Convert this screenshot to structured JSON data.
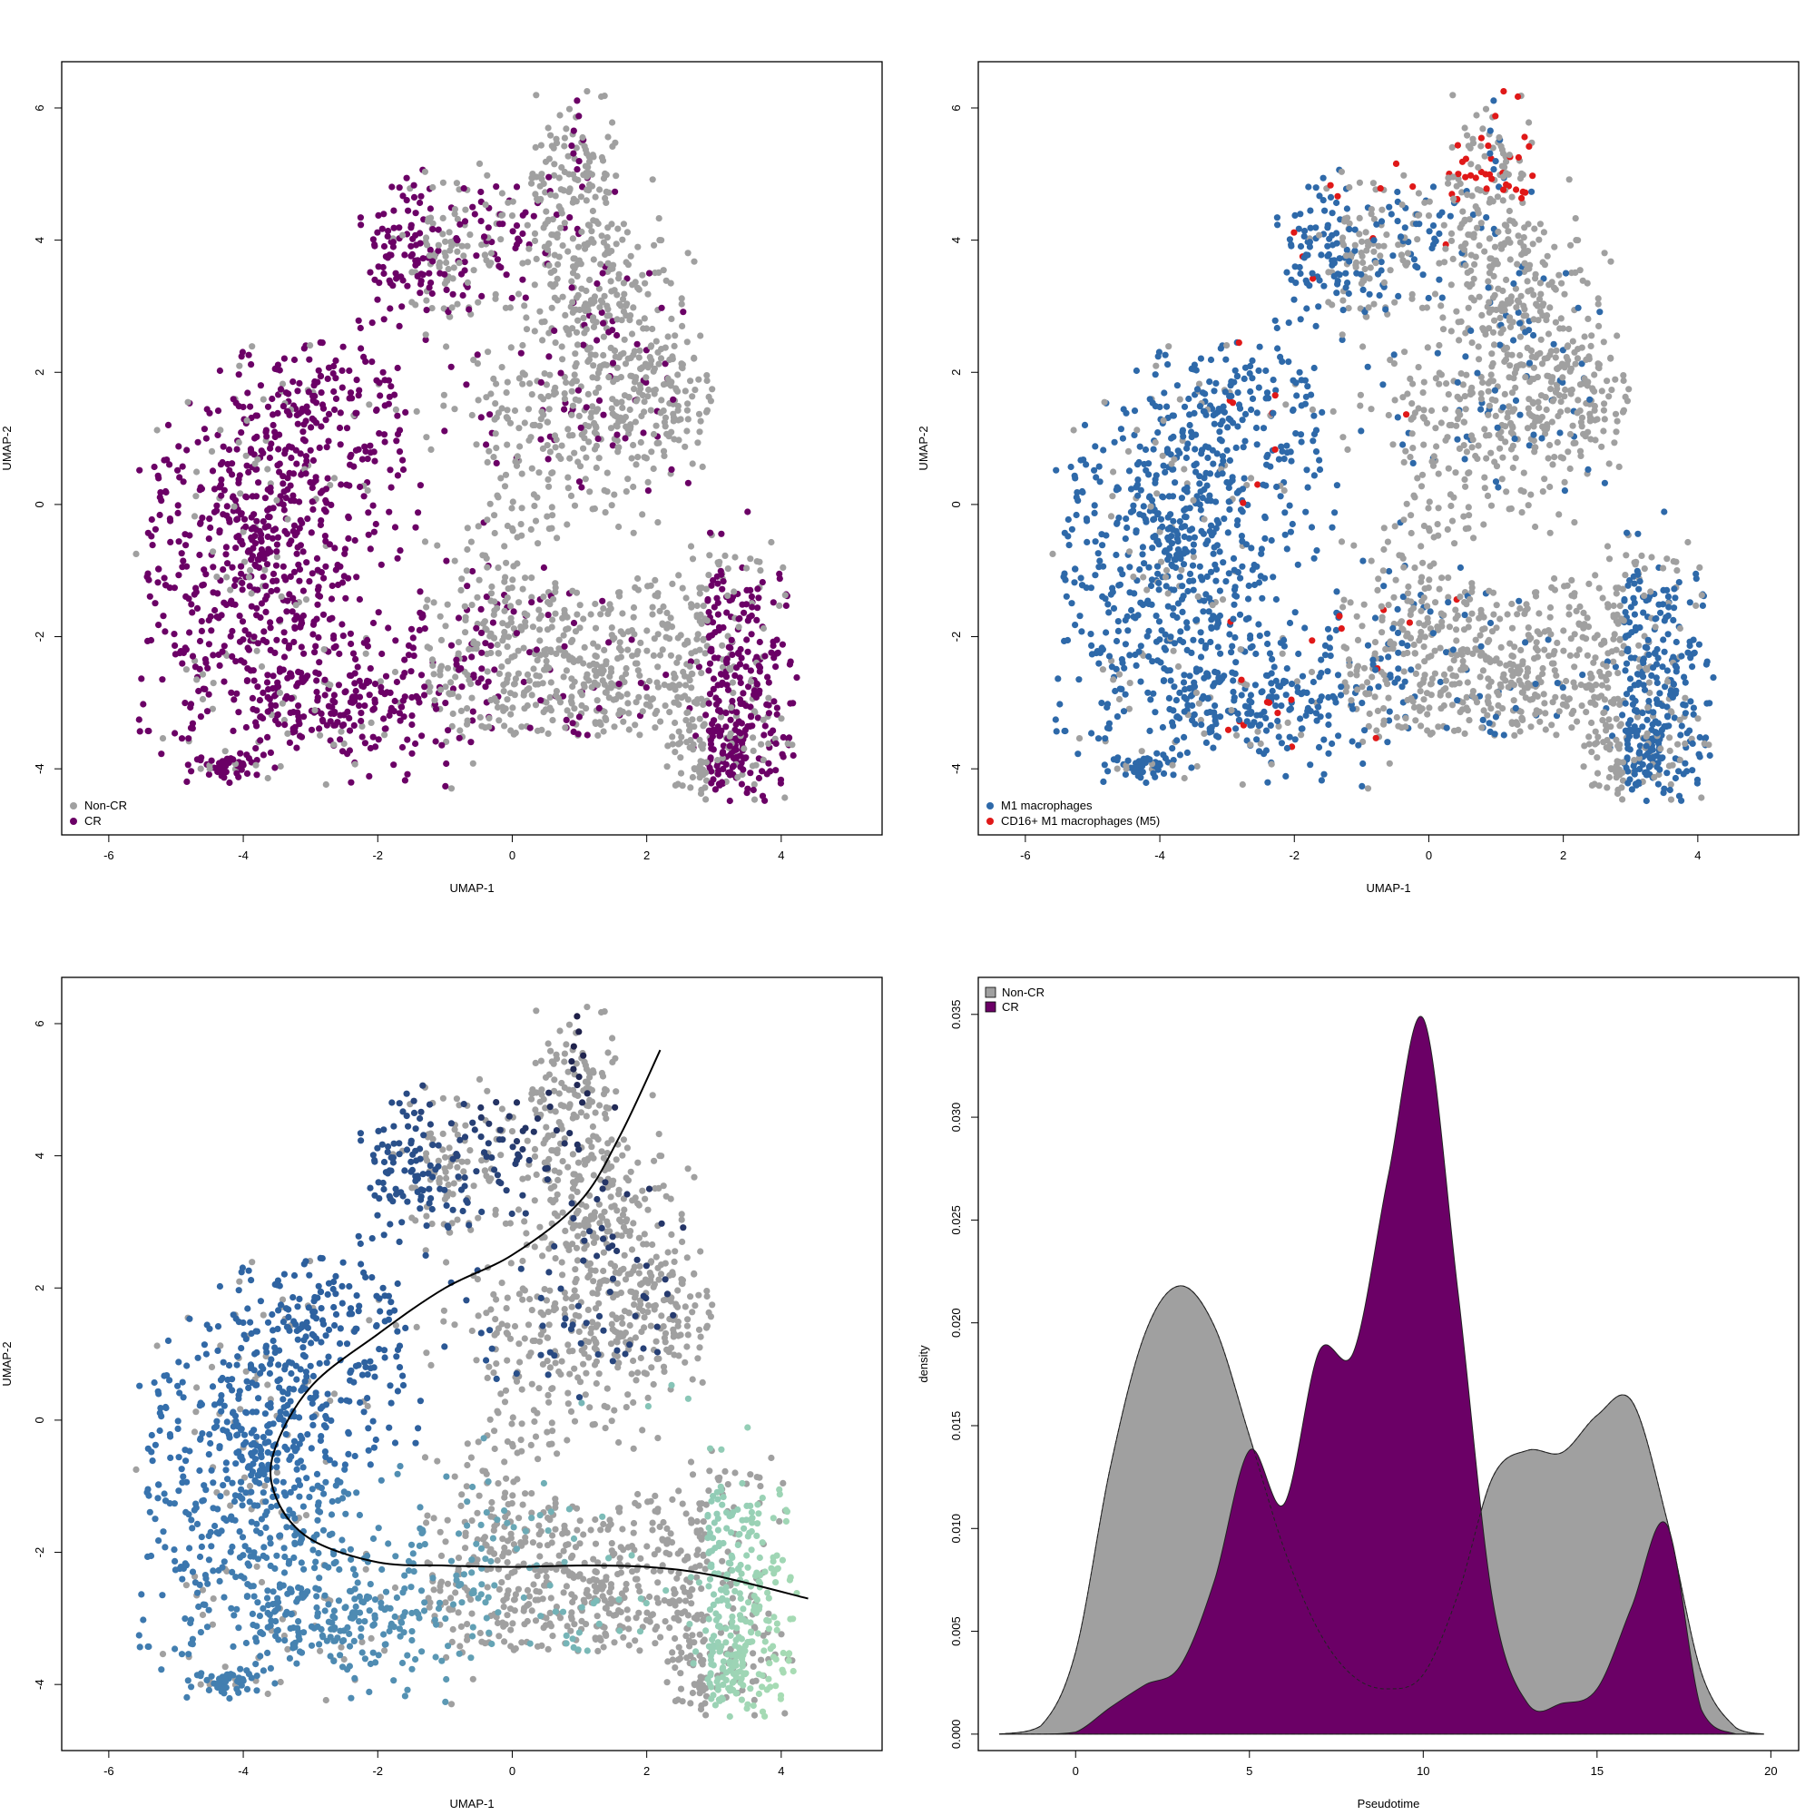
{
  "colors": {
    "grey": "#a0a0a0",
    "purple": "#6b0066",
    "blue": "#2e69a9",
    "red": "#e01818",
    "curve": "#000000",
    "pseudotime_palette": [
      "#a8dcb4",
      "#7fbfb8",
      "#5592b3",
      "#3570ad",
      "#2b5c9a",
      "#273e73",
      "#1e1e46"
    ]
  },
  "chart_data": [
    {
      "type": "scatter",
      "title": "",
      "xlabel": "UMAP-1",
      "ylabel": "UMAP-2",
      "xlim": [
        -6.7,
        5.5
      ],
      "ylim": [
        -5.0,
        6.7
      ],
      "xticks": [
        "-6",
        "-4",
        "-2",
        "0",
        "2",
        "4"
      ],
      "yticks": [
        "-4",
        "-2",
        "0",
        "2",
        "4",
        "6"
      ],
      "grid": false,
      "legend_position": "bottom-left",
      "legend": [
        {
          "label": "Non-CR",
          "color": "#a0a0a0"
        },
        {
          "label": "CR",
          "color": "#6b0066"
        }
      ],
      "series": [
        {
          "name": "Non-CR",
          "region": "right half of the embedding, x approx -1 to 4.2"
        },
        {
          "name": "CR",
          "region": "left half x approx -5.5 to -1, plus lower-right cluster near (3.5, -3)"
        }
      ]
    },
    {
      "type": "scatter",
      "title": "",
      "xlabel": "UMAP-1",
      "ylabel": "UMAP-2",
      "xlim": [
        -6.7,
        5.5
      ],
      "ylim": [
        -5.0,
        6.7
      ],
      "xticks": [
        "-6",
        "-4",
        "-2",
        "0",
        "2",
        "4"
      ],
      "yticks": [
        "-4",
        "-2",
        "0",
        "2",
        "4",
        "6"
      ],
      "grid": false,
      "legend_position": "bottom-left",
      "legend": [
        {
          "label": "M1 macrophages",
          "color": "#2e69a9"
        },
        {
          "label": "CD16+ M1 macrophages (M5)",
          "color": "#e01818"
        }
      ]
    },
    {
      "type": "scatter",
      "title": "",
      "xlabel": "UMAP-1",
      "ylabel": "UMAP-2",
      "xlim": [
        -6.7,
        5.5
      ],
      "ylim": [
        -5.0,
        6.7
      ],
      "xticks": [
        "-6",
        "-4",
        "-2",
        "0",
        "2",
        "4"
      ],
      "yticks": [
        "-4",
        "-2",
        "0",
        "2",
        "4",
        "6"
      ],
      "grid": false,
      "trajectory": [
        [
          2.2,
          5.6
        ],
        [
          1.6,
          4.3
        ],
        [
          1.0,
          3.3
        ],
        [
          0.0,
          2.5
        ],
        [
          -1.0,
          2.0
        ],
        [
          -2.0,
          1.3
        ],
        [
          -3.0,
          0.5
        ],
        [
          -3.55,
          -0.5
        ],
        [
          -3.5,
          -1.2
        ],
        [
          -3.0,
          -1.8
        ],
        [
          -2.0,
          -2.15
        ],
        [
          -1.0,
          -2.2
        ],
        [
          0.0,
          -2.22
        ],
        [
          1.0,
          -2.2
        ],
        [
          2.0,
          -2.22
        ],
        [
          3.0,
          -2.35
        ],
        [
          4.4,
          -2.7
        ]
      ]
    },
    {
      "type": "area",
      "title": "",
      "xlabel": "Pseudotime",
      "ylabel": "density",
      "xlim": [
        -2.8,
        20.8
      ],
      "ylim": [
        -0.0008,
        0.0368
      ],
      "xticks": [
        "0",
        "5",
        "10",
        "15",
        "20"
      ],
      "yticks": [
        "0.000",
        "0.005",
        "0.010",
        "0.015",
        "0.020",
        "0.025",
        "0.030",
        "0.035"
      ],
      "grid": false,
      "legend_position": "top-left",
      "legend": [
        {
          "label": "Non-CR",
          "color": "#a0a0a0"
        },
        {
          "label": "CR",
          "color": "#6b0066"
        }
      ],
      "x": [
        -2.2,
        -1,
        0,
        1,
        2,
        3,
        4,
        5,
        6,
        7,
        8,
        9,
        10,
        11,
        12,
        13,
        14,
        15,
        16,
        17,
        18,
        19,
        19.8
      ],
      "series": [
        {
          "name": "Non-CR",
          "values": [
            0,
            0.0004,
            0.004,
            0.013,
            0.0195,
            0.0218,
            0.0198,
            0.0145,
            0.009,
            0.005,
            0.0028,
            0.0022,
            0.0029,
            0.0068,
            0.0125,
            0.0138,
            0.0137,
            0.0155,
            0.0162,
            0.0105,
            0.003,
            0.0003,
            0
          ]
        },
        {
          "name": "CR",
          "values": [
            0,
            0,
            0.0001,
            0.0013,
            0.0024,
            0.0033,
            0.0075,
            0.0138,
            0.0112,
            0.0186,
            0.0186,
            0.0272,
            0.0348,
            0.0215,
            0.0065,
            0.0015,
            0.0015,
            0.0022,
            0.0062,
            0.0102,
            0.0012,
            0,
            0
          ]
        }
      ]
    }
  ]
}
